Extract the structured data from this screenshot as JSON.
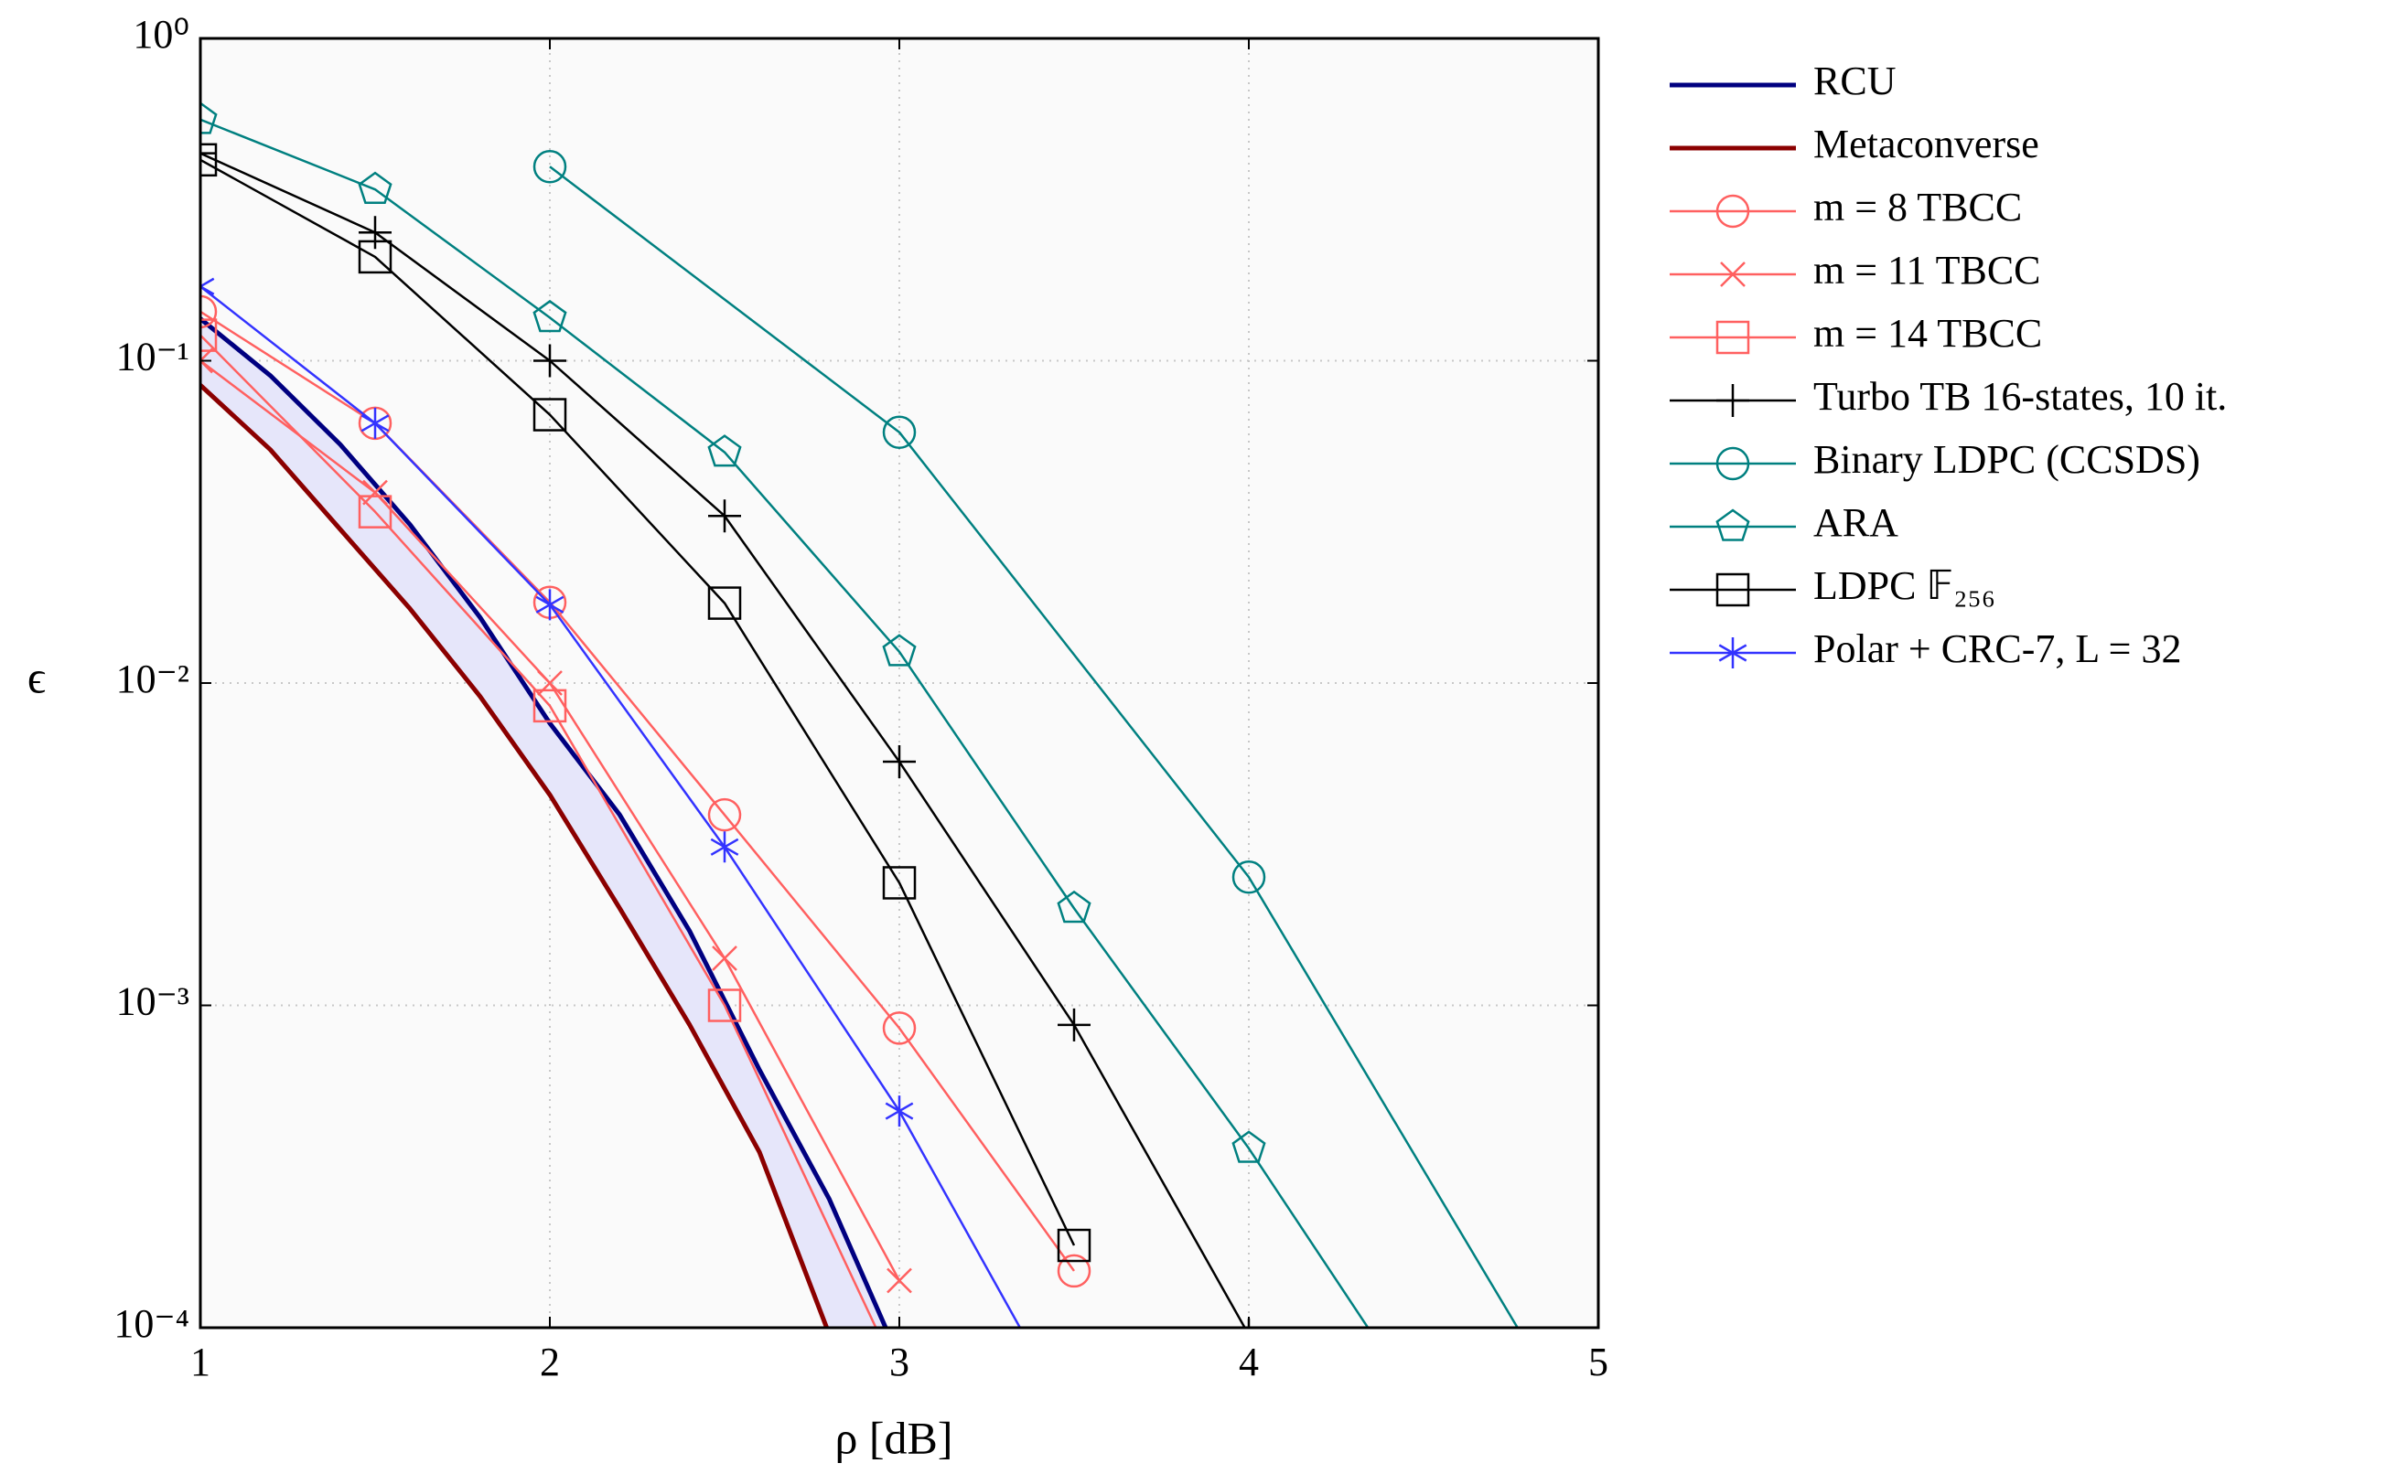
{
  "chart_data": {
    "type": "line",
    "xlabel": "ρ [dB]",
    "ylabel": "ϵ",
    "xlim": [
      1,
      5
    ],
    "xticks": [
      1,
      2,
      3,
      4,
      5
    ],
    "ylim": [
      0.0001,
      1
    ],
    "ylog": true,
    "yticks": [
      {
        "value": 1,
        "label": "10⁰"
      },
      {
        "value": 0.1,
        "label": "10⁻¹"
      },
      {
        "value": 0.01,
        "label": "10⁻²"
      },
      {
        "value": 0.001,
        "label": "10⁻³"
      },
      {
        "value": 0.0001,
        "label": "10⁻⁴"
      }
    ],
    "grid": true,
    "legend": "outside right",
    "shade_between": [
      0,
      1
    ],
    "shade_color": "#e6e6fa",
    "series": [
      {
        "name": "RCU",
        "color": "#000080",
        "width": 5,
        "marker": "none",
        "x": [
          1,
          1.2,
          1.4,
          1.6,
          1.8,
          2,
          2.2,
          2.4,
          2.6,
          2.8,
          3
        ],
        "values": [
          0.135,
          0.09,
          0.055,
          0.031,
          0.016,
          0.0075,
          0.0039,
          0.0017,
          0.00063,
          0.00025,
          8e-05
        ]
      },
      {
        "name": "Metaconverse",
        "color": "#8b0000",
        "width": 5,
        "marker": "none",
        "x": [
          1,
          1.2,
          1.4,
          1.6,
          1.8,
          2,
          2.2,
          2.4,
          2.6,
          2.8
        ],
        "values": [
          0.084,
          0.053,
          0.03,
          0.017,
          0.0091,
          0.0045,
          0.002,
          0.00087,
          0.00035,
          9.5e-05
        ]
      },
      {
        "name": "m = 8 TBCC",
        "color": "#ff6060",
        "width": 2.5,
        "marker": "o",
        "x": [
          1,
          1.5,
          2,
          2.5,
          3,
          3.5
        ],
        "values": [
          0.142,
          0.064,
          0.0178,
          0.0039,
          0.00085,
          0.00015
        ]
      },
      {
        "name": "m = 11 TBCC",
        "color": "#ff6060",
        "width": 2.5,
        "marker": "x",
        "x": [
          1,
          1.5,
          2,
          2.5,
          3
        ],
        "values": [
          0.1,
          0.039,
          0.01,
          0.0014,
          0.00014
        ]
      },
      {
        "name": "m = 14 TBCC",
        "color": "#ff6060",
        "width": 2.5,
        "marker": "s",
        "x": [
          1,
          1.5,
          2,
          2.5,
          3
        ],
        "values": [
          0.12,
          0.034,
          0.0085,
          0.001,
          7e-05
        ]
      },
      {
        "name": "Turbo TB 16-states, 10 it.",
        "color": "#000000",
        "width": 2.5,
        "marker": "+",
        "x": [
          1,
          1.5,
          2,
          2.5,
          3,
          3.5,
          4
        ],
        "values": [
          0.44,
          0.25,
          0.1,
          0.033,
          0.0057,
          0.00087,
          9.5e-05
        ]
      },
      {
        "name": "Binary LDPC (CCSDS)",
        "color": "#008080",
        "width": 2.5,
        "marker": "o",
        "x": [
          2,
          3,
          4,
          5
        ],
        "values": [
          0.4,
          0.06,
          0.0025,
          3.8e-05
        ]
      },
      {
        "name": "ARA",
        "color": "#008080",
        "width": 2.5,
        "marker": "p",
        "x": [
          1,
          1.5,
          2,
          2.5,
          3,
          3.5,
          4,
          4.5
        ],
        "values": [
          0.56,
          0.34,
          0.136,
          0.052,
          0.0125,
          0.002,
          0.00036,
          5.5e-05
        ]
      },
      {
        "name": "LDPC 𝔽₂₅₆",
        "color": "#000000",
        "width": 2.5,
        "marker": "s",
        "x": [
          1,
          1.5,
          2,
          2.5,
          3,
          3.5
        ],
        "values": [
          0.42,
          0.21,
          0.068,
          0.0177,
          0.0024,
          0.00018
        ]
      },
      {
        "name": "Polar + CRC-7, L = 32",
        "color": "#3333ff",
        "width": 2.5,
        "marker": "*",
        "x": [
          1,
          1.5,
          2,
          2.5,
          3,
          3.5
        ],
        "values": [
          0.17,
          0.064,
          0.0175,
          0.0031,
          0.00047,
          5e-05
        ]
      }
    ]
  }
}
